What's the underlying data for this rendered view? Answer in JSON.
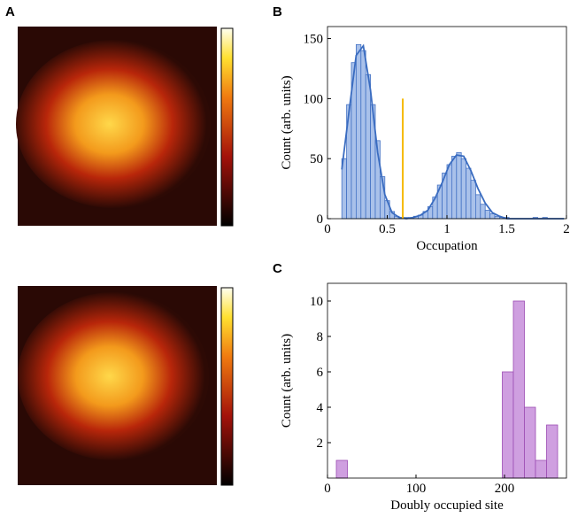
{
  "image_panel": {
    "label": "A"
  },
  "chart_data": [
    {
      "type": "histogram",
      "panel": "B",
      "xlabel": "Occupation",
      "ylabel": "Count (arb. units)",
      "bins": [
        0.12,
        0.16,
        0.2,
        0.24,
        0.28,
        0.32,
        0.36,
        0.4,
        0.44,
        0.48,
        0.52,
        0.56,
        0.6,
        0.64,
        0.68,
        0.72,
        0.76,
        0.8,
        0.84,
        0.88,
        0.92,
        0.96,
        1.0,
        1.04,
        1.08,
        1.12,
        1.16,
        1.2,
        1.24,
        1.28,
        1.32,
        1.36,
        1.4,
        1.44,
        1.48,
        1.52,
        1.56,
        1.6,
        1.64,
        1.68,
        1.72,
        1.76,
        1.8,
        1.84,
        1.88,
        1.92,
        1.96,
        2.0
      ],
      "counts": [
        50,
        95,
        130,
        145,
        140,
        120,
        95,
        65,
        35,
        15,
        6,
        2,
        1,
        1,
        1,
        2,
        3,
        6,
        10,
        18,
        28,
        38,
        45,
        52,
        55,
        50,
        42,
        32,
        20,
        12,
        7,
        4,
        2,
        1,
        1,
        0,
        0,
        0,
        0,
        0,
        1,
        0,
        1,
        0,
        0,
        0,
        0
      ],
      "color": "#a9c1ea",
      "edge_color": "#4472c4",
      "fit": {
        "x": [
          0.12,
          0.18,
          0.24,
          0.3,
          0.36,
          0.42,
          0.48,
          0.54,
          0.6,
          0.66,
          0.72,
          0.78,
          0.84,
          0.9,
          0.96,
          1.02,
          1.08,
          1.14,
          1.2,
          1.26,
          1.32,
          1.38,
          1.44,
          1.5,
          1.56,
          1.62,
          1.68,
          1.74,
          1.8,
          1.86,
          1.92,
          1.98
        ],
        "values": [
          41,
          89,
          136,
          144,
          107,
          55,
          20,
          5,
          1,
          0,
          1,
          3,
          7,
          17,
          30,
          45,
          53,
          52,
          40,
          25,
          13,
          5,
          2,
          0,
          0,
          0,
          0,
          0,
          0,
          0,
          0,
          0
        ],
        "color": "#3a6cc0"
      },
      "threshold": {
        "x": 0.63,
        "ymax": 100,
        "color": "#f5b800"
      },
      "xlim": [
        0,
        2
      ],
      "ylim": [
        0,
        160
      ],
      "xticks": [
        0,
        0.5,
        1,
        1.5,
        2
      ],
      "yticks": [
        0,
        50,
        100,
        150
      ]
    },
    {
      "type": "histogram",
      "panel": "C",
      "xlabel": "Doubly occupied site",
      "ylabel": "Count (arb. units)",
      "bins": [
        10,
        22.5,
        35,
        47.5,
        60,
        72.5,
        85,
        97.5,
        110,
        122.5,
        135,
        147.5,
        160,
        172.5,
        185,
        197.5,
        210,
        222.5,
        235,
        247.5,
        260
      ],
      "counts": [
        1,
        0,
        0,
        0,
        0,
        0,
        0,
        0,
        0,
        0,
        0,
        0,
        0,
        0,
        0,
        6,
        10,
        4,
        1,
        3
      ],
      "color": "#cf9fe0",
      "edge_color": "#9c4db3",
      "xlim": [
        0,
        270
      ],
      "ylim": [
        0,
        11
      ],
      "xticks": [
        0,
        100,
        200
      ],
      "yticks": [
        2,
        4,
        6,
        8,
        10
      ]
    }
  ]
}
